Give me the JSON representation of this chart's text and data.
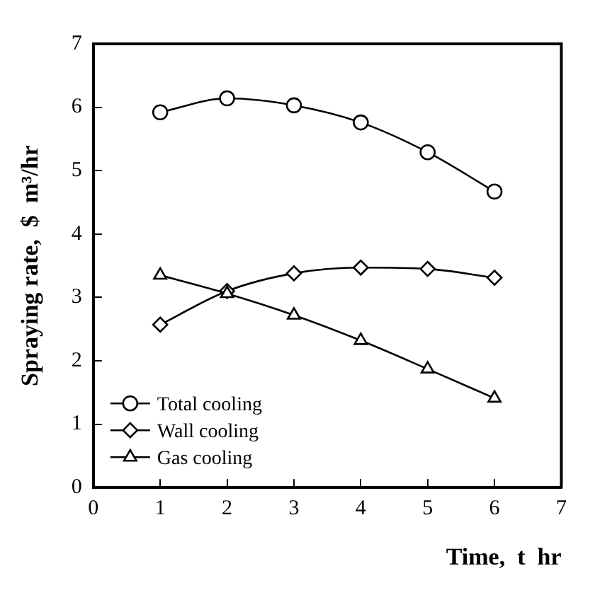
{
  "chart_data": {
    "type": "line",
    "xlabel": "Time,  t  hr",
    "ylabel": "Spraying rate,  $  m³/hr",
    "x": [
      1,
      2,
      3,
      4,
      5,
      6
    ],
    "xlim": [
      0,
      7
    ],
    "xticks": [
      0,
      1,
      2,
      3,
      4,
      5,
      6,
      7
    ],
    "ylim": [
      0,
      7
    ],
    "yticks": [
      0,
      1,
      2,
      3,
      4,
      5,
      6,
      7
    ],
    "grid": false,
    "legend": "bottom left",
    "line_style": "solid",
    "series": [
      {
        "name": "Total cooling",
        "color": "#000000",
        "marker": "circle",
        "values": [
          5.92,
          6.14,
          6.03,
          5.76,
          5.29,
          4.67
        ]
      },
      {
        "name": "Wall cooling",
        "color": "#000000",
        "marker": "diamond",
        "values": [
          2.57,
          3.1,
          3.38,
          3.47,
          3.45,
          3.31
        ]
      },
      {
        "name": "Gas cooling",
        "color": "#000000",
        "marker": "triangle",
        "values": [
          3.35,
          3.06,
          2.72,
          2.32,
          1.87,
          1.41
        ]
      }
    ]
  }
}
